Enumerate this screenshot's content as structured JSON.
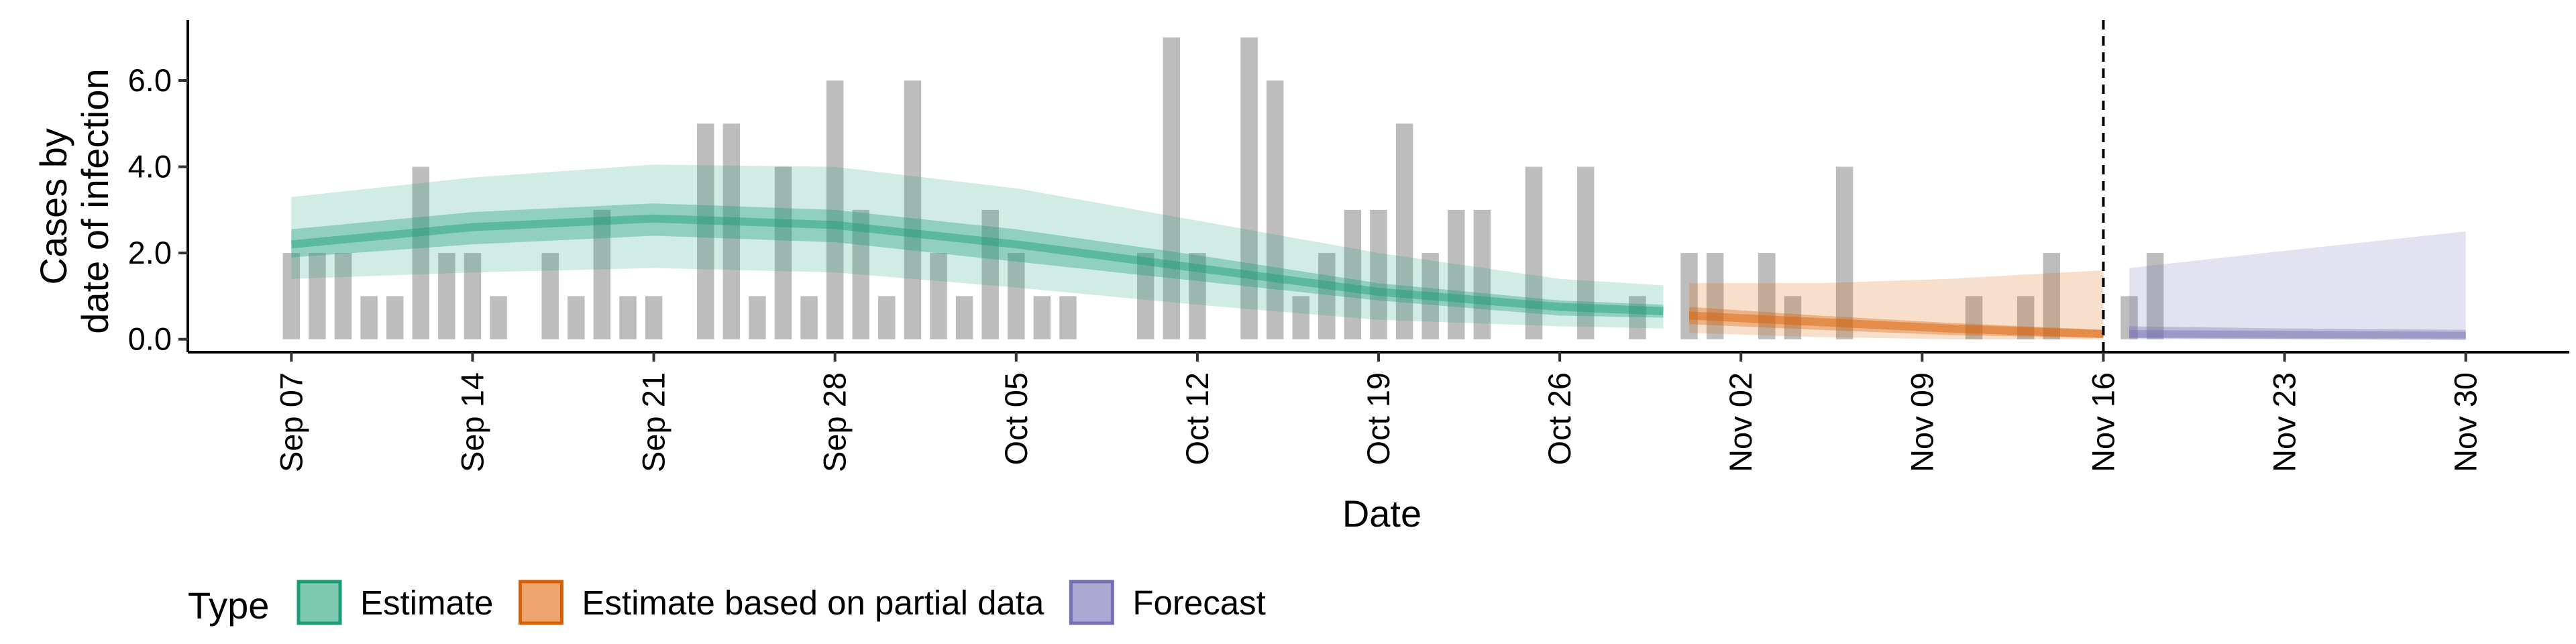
{
  "chart_data": {
    "type": "bar",
    "xlabel": "Date",
    "ylabel_lines": [
      "Cases by",
      "date of infection"
    ],
    "x_range": [
      "2020-09-03",
      "2020-12-04"
    ],
    "ylim": [
      -0.3,
      7.4
    ],
    "y_ticks": [
      0,
      2,
      4,
      6
    ],
    "y_tick_labels": [
      "0.0",
      "2.0",
      "4.0",
      "6.0"
    ],
    "x_ticks": [
      "2020-09-07",
      "2020-09-14",
      "2020-09-21",
      "2020-09-28",
      "2020-10-05",
      "2020-10-12",
      "2020-10-19",
      "2020-10-26",
      "2020-11-02",
      "2020-11-09",
      "2020-11-16",
      "2020-11-23",
      "2020-11-30"
    ],
    "x_tick_labels": [
      "Sep 07",
      "Sep 14",
      "Sep 21",
      "Sep 28",
      "Oct 05",
      "Oct 12",
      "Oct 19",
      "Oct 26",
      "Nov 02",
      "Nov 09",
      "Nov 16",
      "Nov 23",
      "Nov 30"
    ],
    "grid": false,
    "vline_date": "2020-11-16",
    "bar_color": "#bdbdbd",
    "bars": {
      "start_date": "2020-09-07",
      "values": [
        2,
        2,
        2,
        1,
        1,
        4,
        2,
        2,
        1,
        0,
        2,
        1,
        3,
        1,
        1,
        0,
        5,
        5,
        1,
        4,
        1,
        6,
        3,
        1,
        6,
        2,
        1,
        3,
        2,
        1,
        1,
        0,
        0,
        2,
        7,
        2,
        0,
        7,
        6,
        1,
        2,
        3,
        3,
        5,
        2,
        3,
        3,
        0,
        4,
        0,
        4,
        0,
        1,
        0,
        2,
        2,
        0,
        2,
        1,
        0,
        4,
        0,
        0,
        0,
        0,
        1,
        0,
        1,
        2,
        0,
        0,
        1,
        2
      ]
    },
    "series": [
      {
        "name": "Estimate",
        "color": "#1b9e77",
        "x": [
          "2020-09-07",
          "2020-09-14",
          "2020-09-21",
          "2020-09-28",
          "2020-10-05",
          "2020-10-12",
          "2020-10-19",
          "2020-10-26",
          "2020-10-30"
        ],
        "median": [
          2.2,
          2.6,
          2.8,
          2.65,
          2.2,
          1.65,
          1.1,
          0.75,
          0.65
        ],
        "inner_low": [
          1.9,
          2.2,
          2.4,
          2.25,
          1.8,
          1.35,
          0.9,
          0.55,
          0.5
        ],
        "inner_high": [
          2.55,
          2.95,
          3.15,
          3.0,
          2.55,
          1.95,
          1.3,
          0.9,
          0.8
        ],
        "outer_low": [
          1.4,
          1.55,
          1.65,
          1.55,
          1.2,
          0.8,
          0.45,
          0.3,
          0.25
        ],
        "outer_high": [
          3.3,
          3.75,
          4.05,
          4.0,
          3.5,
          2.75,
          2.0,
          1.4,
          1.25
        ]
      },
      {
        "name": "Estimate based on partial data",
        "color": "#d95f02",
        "x": [
          "2020-10-31",
          "2020-11-05",
          "2020-11-10",
          "2020-11-16"
        ],
        "median": [
          0.55,
          0.4,
          0.25,
          0.12
        ],
        "inner_low": [
          0.35,
          0.22,
          0.1,
          0.03
        ],
        "inner_high": [
          0.75,
          0.55,
          0.38,
          0.22
        ],
        "outer_low": [
          0.15,
          0.05,
          0.0,
          0.0
        ],
        "outer_high": [
          1.3,
          1.3,
          1.4,
          1.6
        ]
      },
      {
        "name": "Forecast",
        "color": "#7570b3",
        "x": [
          "2020-11-17",
          "2020-11-23",
          "2020-11-30"
        ],
        "median": [
          0.12,
          0.1,
          0.08
        ],
        "inner_low": [
          0.04,
          0.03,
          0.02
        ],
        "inner_high": [
          0.3,
          0.25,
          0.22
        ],
        "outer_low": [
          0.0,
          0.0,
          0.0
        ],
        "outer_high": [
          1.65,
          2.05,
          2.5
        ]
      }
    ],
    "legend": {
      "title": "Type",
      "placement": "bottom-left",
      "items": [
        {
          "label": "Estimate",
          "fill": "#7fc9b0",
          "stroke": "#1b9e77"
        },
        {
          "label": "Estimate based on partial data",
          "fill": "#f0a46d",
          "stroke": "#d95f02"
        },
        {
          "label": "Forecast",
          "fill": "#aba8d4",
          "stroke": "#7570b3"
        }
      ]
    }
  }
}
